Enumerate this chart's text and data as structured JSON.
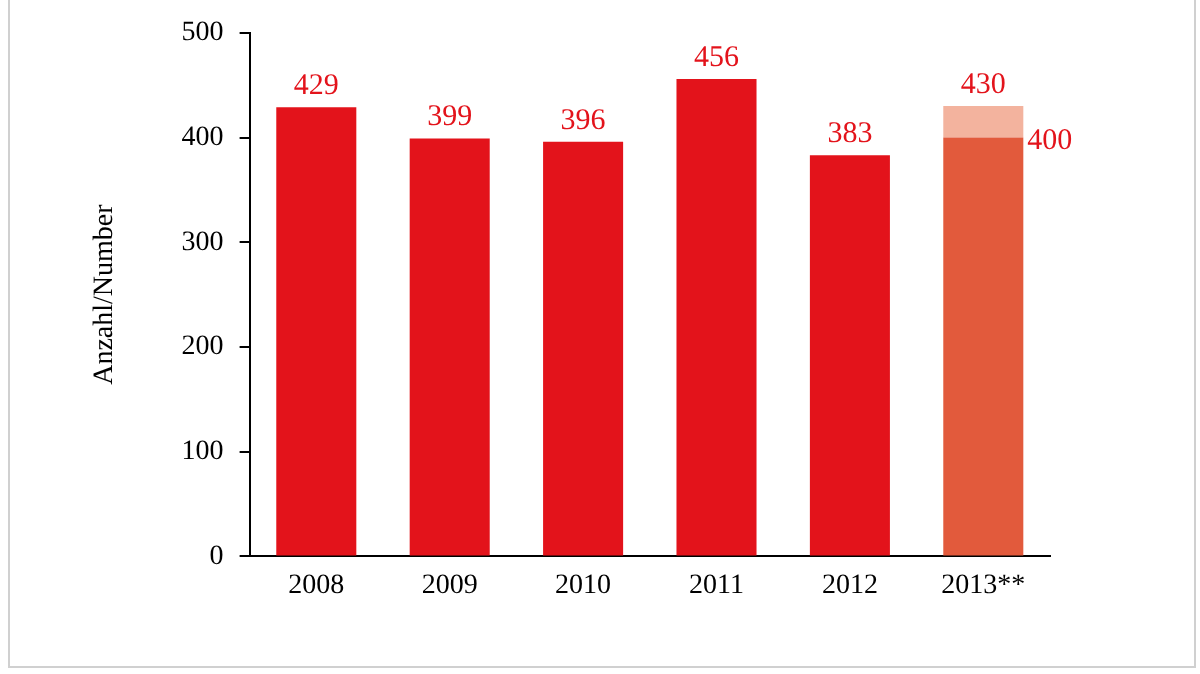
{
  "chart_data": {
    "type": "bar",
    "ylabel": "Anzahl/Number",
    "categories": [
      "2008",
      "2009",
      "2010",
      "2011",
      "2012",
      "2013**"
    ],
    "stacked": true,
    "series": [
      {
        "colors": [
          "#e3131b",
          "#e3131b",
          "#e3131b",
          "#e3131b",
          "#e3131b",
          "#e25a3c"
        ],
        "values": [
          429,
          399,
          396,
          456,
          383,
          400
        ],
        "value_labels": [
          "429",
          "399",
          "396",
          "456",
          "383",
          "400"
        ]
      },
      {
        "color": "#f3b39e",
        "values": [
          null,
          null,
          null,
          null,
          null,
          30
        ]
      }
    ],
    "totals": [
      null,
      null,
      null,
      null,
      null,
      "430"
    ],
    "ylim": [
      0,
      500
    ],
    "yticks": [
      0,
      100,
      200,
      300,
      400,
      500
    ],
    "grid": false,
    "legend": false
  }
}
